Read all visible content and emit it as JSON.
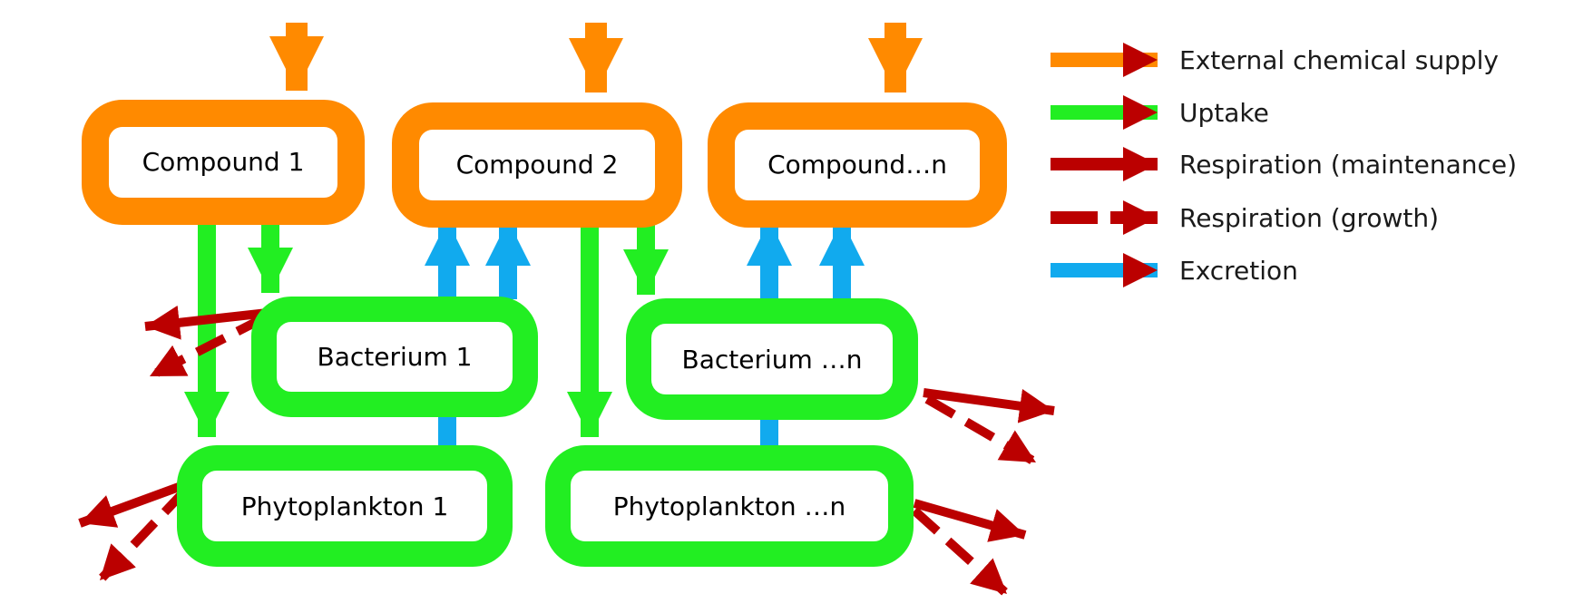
{
  "colors": {
    "supply": "#ff8a00",
    "uptake": "#22ee22",
    "respiration": "#bb0000",
    "excretion": "#11aaee",
    "box_fill": "#ffffff",
    "text": "#000000"
  },
  "nodes": {
    "compound_1": "Compound 1",
    "compound_2": "Compound 2",
    "compound_n": "Compound…n",
    "bacterium_1": "Bacterium 1",
    "bacterium_n": "Bacterium …n",
    "phytoplankton_1": "Phytoplankton 1",
    "phytoplankton_n": "Phytoplankton …n"
  },
  "legend": {
    "supply": "External chemical supply",
    "uptake": "Uptake",
    "resp_maintenance": "Respiration (maintenance)",
    "resp_growth": "Respiration (growth)",
    "excretion": "Excretion"
  }
}
